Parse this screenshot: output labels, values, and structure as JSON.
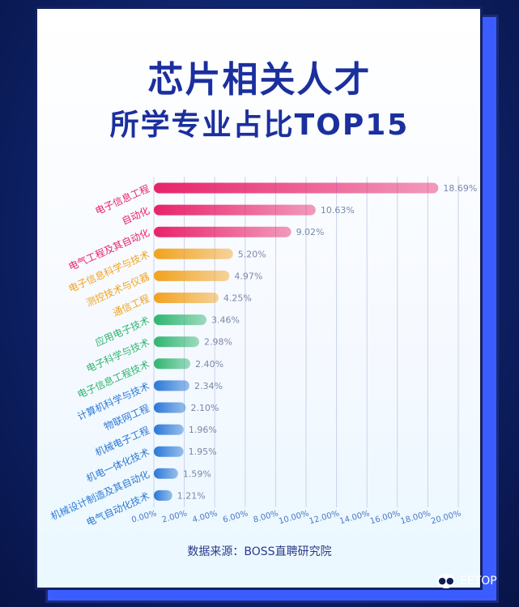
{
  "title_line1": "芯片相关人才",
  "title_line2": "所学专业占比TOP15",
  "source": "数据来源：BOSS直聘研究院",
  "logo_text": "EETOP",
  "chart_data": {
    "type": "bar",
    "orientation": "horizontal",
    "categories": [
      "电子信息工程",
      "自动化",
      "电气工程及其自动化",
      "电子信息科学与技术",
      "测控技术与仪器",
      "通信工程",
      "应用电子技术",
      "电子科学与技术",
      "电子信息工程技术",
      "计算机科学与技术",
      "物联网工程",
      "机械电子工程",
      "机电一体化技术",
      "机械设计制造及其自动化",
      "电气自动化技术"
    ],
    "values": [
      18.69,
      10.63,
      9.02,
      5.2,
      4.97,
      4.25,
      3.46,
      2.98,
      2.4,
      2.34,
      2.1,
      1.96,
      1.95,
      1.59,
      1.21
    ],
    "data_labels": [
      "18.69%",
      "10.63%",
      "9.02%",
      "5.20%",
      "4.97%",
      "4.25%",
      "3.46%",
      "2.98%",
      "2.40%",
      "2.34%",
      "2.10%",
      "1.96%",
      "1.95%",
      "1.59%",
      "1.21%"
    ],
    "xticks": [
      "0.00%",
      "2.00%",
      "4.00%",
      "6.00%",
      "8.00%",
      "10.00%",
      "12.00%",
      "14.00%",
      "16.00%",
      "18.00%",
      "20.00%"
    ],
    "xlim": [
      0,
      20
    ],
    "grid": true,
    "group_colors": [
      "#e8236a",
      "#e8236a",
      "#e8236a",
      "#f2a21e",
      "#f2a21e",
      "#f2a21e",
      "#2fb56f",
      "#2fb56f",
      "#2fb56f",
      "#2a78d6",
      "#2a78d6",
      "#2a78d6",
      "#2a78d6",
      "#2a78d6",
      "#2a78d6"
    ]
  }
}
